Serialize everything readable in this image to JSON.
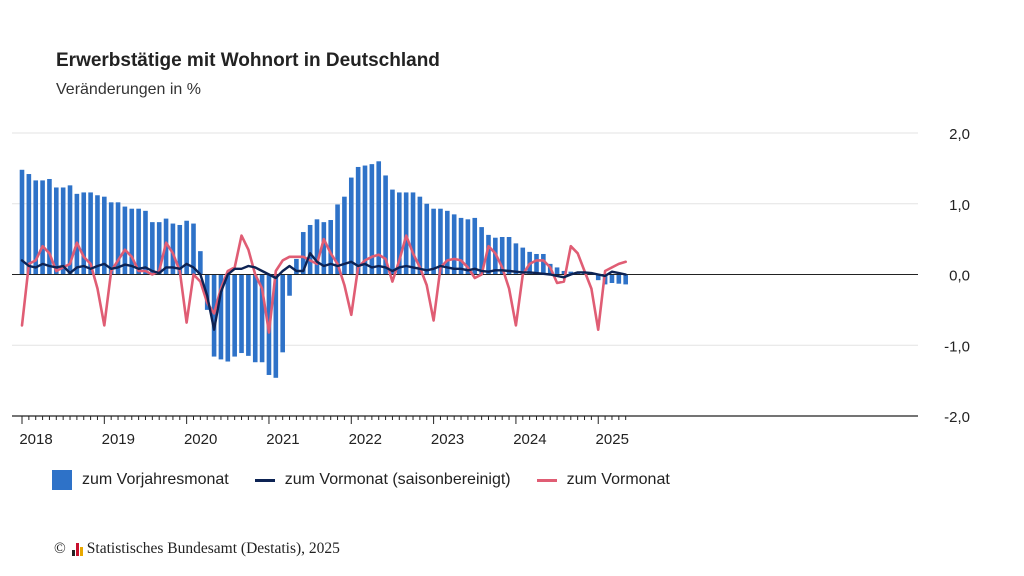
{
  "title": "Erwerbstätige mit Wohnort in Deutschland",
  "subtitle": "Veränderungen in %",
  "legend": {
    "bar_label": "zum Vorjahresmonat",
    "sa_label": "zum Vormonat (saisonbereinigt)",
    "mom_label": "zum Vormonat"
  },
  "source": {
    "copyright": "©",
    "text": "Statistisches Bundesamt (Destatis), 2025"
  },
  "colors": {
    "bars": "#2e72c8",
    "sa_line": "#0d2354",
    "mom_line": "#e05d74",
    "grid": "#e3e3e3",
    "axis": "#222222"
  },
  "chart_data": {
    "type": "bar+line",
    "title": "Erwerbstätige mit Wohnort in Deutschland",
    "subtitle": "Veränderungen in %",
    "ylim": [
      -2.0,
      2.0
    ],
    "yticks": [
      "2,0",
      "1,0",
      "0,0",
      "-1,0",
      "-2,0"
    ],
    "yticks_values": [
      2.0,
      1.0,
      0.0,
      -1.0,
      -2.0
    ],
    "xticks": [
      "2018",
      "2019",
      "2020",
      "2021",
      "2022",
      "2023",
      "2024",
      "2025"
    ],
    "start": "2018-01",
    "end": "2025-04",
    "grid": true,
    "legend_position": "bottom",
    "series": [
      {
        "name": "zum Vorjahresmonat",
        "type": "bar",
        "values": [
          1.48,
          1.42,
          1.33,
          1.33,
          1.35,
          1.23,
          1.23,
          1.26,
          1.14,
          1.16,
          1.16,
          1.12,
          1.1,
          1.02,
          1.02,
          0.96,
          0.93,
          0.93,
          0.9,
          0.74,
          0.74,
          0.79,
          0.72,
          0.7,
          0.76,
          0.72,
          0.33,
          -0.5,
          -1.16,
          -1.2,
          -1.23,
          -1.16,
          -1.11,
          -1.15,
          -1.24,
          -1.24,
          -1.42,
          -1.46,
          -1.1,
          -0.3,
          0.22,
          0.6,
          0.7,
          0.78,
          0.74,
          0.77,
          0.99,
          1.1,
          1.37,
          1.52,
          1.54,
          1.56,
          1.6,
          1.4,
          1.2,
          1.16,
          1.16,
          1.16,
          1.1,
          1.0,
          0.93,
          0.93,
          0.9,
          0.85,
          0.8,
          0.78,
          0.8,
          0.67,
          0.56,
          0.52,
          0.53,
          0.53,
          0.44,
          0.38,
          0.32,
          0.29,
          0.29,
          0.15,
          0.1,
          0.05,
          0.04,
          0.03,
          0.02,
          0.01,
          -0.08,
          -0.14,
          -0.12,
          -0.13,
          -0.14
        ]
      },
      {
        "name": "zum Vormonat (saisonbereinigt)",
        "type": "line",
        "values": [
          0.2,
          0.12,
          0.1,
          0.15,
          0.12,
          0.1,
          0.12,
          0.02,
          0.1,
          0.12,
          0.08,
          0.12,
          0.15,
          0.08,
          0.1,
          0.14,
          0.12,
          0.08,
          0.1,
          0.05,
          0.02,
          0.1,
          0.1,
          0.08,
          0.15,
          0.1,
          0.0,
          -0.3,
          -0.78,
          -0.25,
          0.0,
          0.08,
          0.08,
          0.12,
          0.1,
          0.05,
          0.0,
          -0.05,
          0.05,
          0.12,
          0.05,
          0.05,
          0.3,
          0.18,
          0.12,
          0.15,
          0.12,
          0.15,
          0.18,
          0.12,
          0.15,
          0.1,
          0.12,
          0.1,
          0.05,
          0.1,
          0.12,
          0.1,
          0.08,
          0.06,
          0.08,
          0.12,
          0.1,
          0.08,
          0.08,
          0.06,
          0.08,
          0.05,
          0.04,
          0.06,
          0.06,
          0.05,
          0.04,
          0.03,
          0.03,
          0.02,
          0.01,
          0.0,
          -0.02,
          -0.04,
          0.0,
          0.03,
          0.03,
          0.02,
          0.0,
          -0.02,
          0.04,
          0.02,
          0.0
        ]
      },
      {
        "name": "zum Vormonat",
        "type": "line",
        "values": [
          -0.72,
          0.15,
          0.2,
          0.4,
          0.3,
          0.05,
          0.1,
          0.15,
          0.45,
          0.25,
          0.15,
          -0.2,
          -0.72,
          0.05,
          0.2,
          0.35,
          0.25,
          0.05,
          0.05,
          0.0,
          0.05,
          0.45,
          0.3,
          0.05,
          -0.68,
          0.0,
          -0.1,
          -0.4,
          -0.55,
          -0.2,
          0.05,
          0.1,
          0.55,
          0.35,
          0.0,
          -0.2,
          -0.82,
          0.05,
          0.2,
          0.25,
          0.25,
          0.25,
          0.2,
          0.15,
          0.5,
          0.3,
          0.15,
          -0.15,
          -0.57,
          0.1,
          0.2,
          0.25,
          0.28,
          0.22,
          -0.1,
          0.2,
          0.55,
          0.3,
          0.1,
          -0.15,
          -0.65,
          0.1,
          0.2,
          0.22,
          0.2,
          0.1,
          -0.05,
          0.0,
          0.4,
          0.3,
          0.1,
          -0.2,
          -0.72,
          0.0,
          0.15,
          0.2,
          0.2,
          0.1,
          -0.12,
          -0.1,
          0.4,
          0.3,
          0.05,
          -0.2,
          -0.78,
          0.05,
          0.1,
          0.15,
          0.18
        ]
      }
    ]
  }
}
